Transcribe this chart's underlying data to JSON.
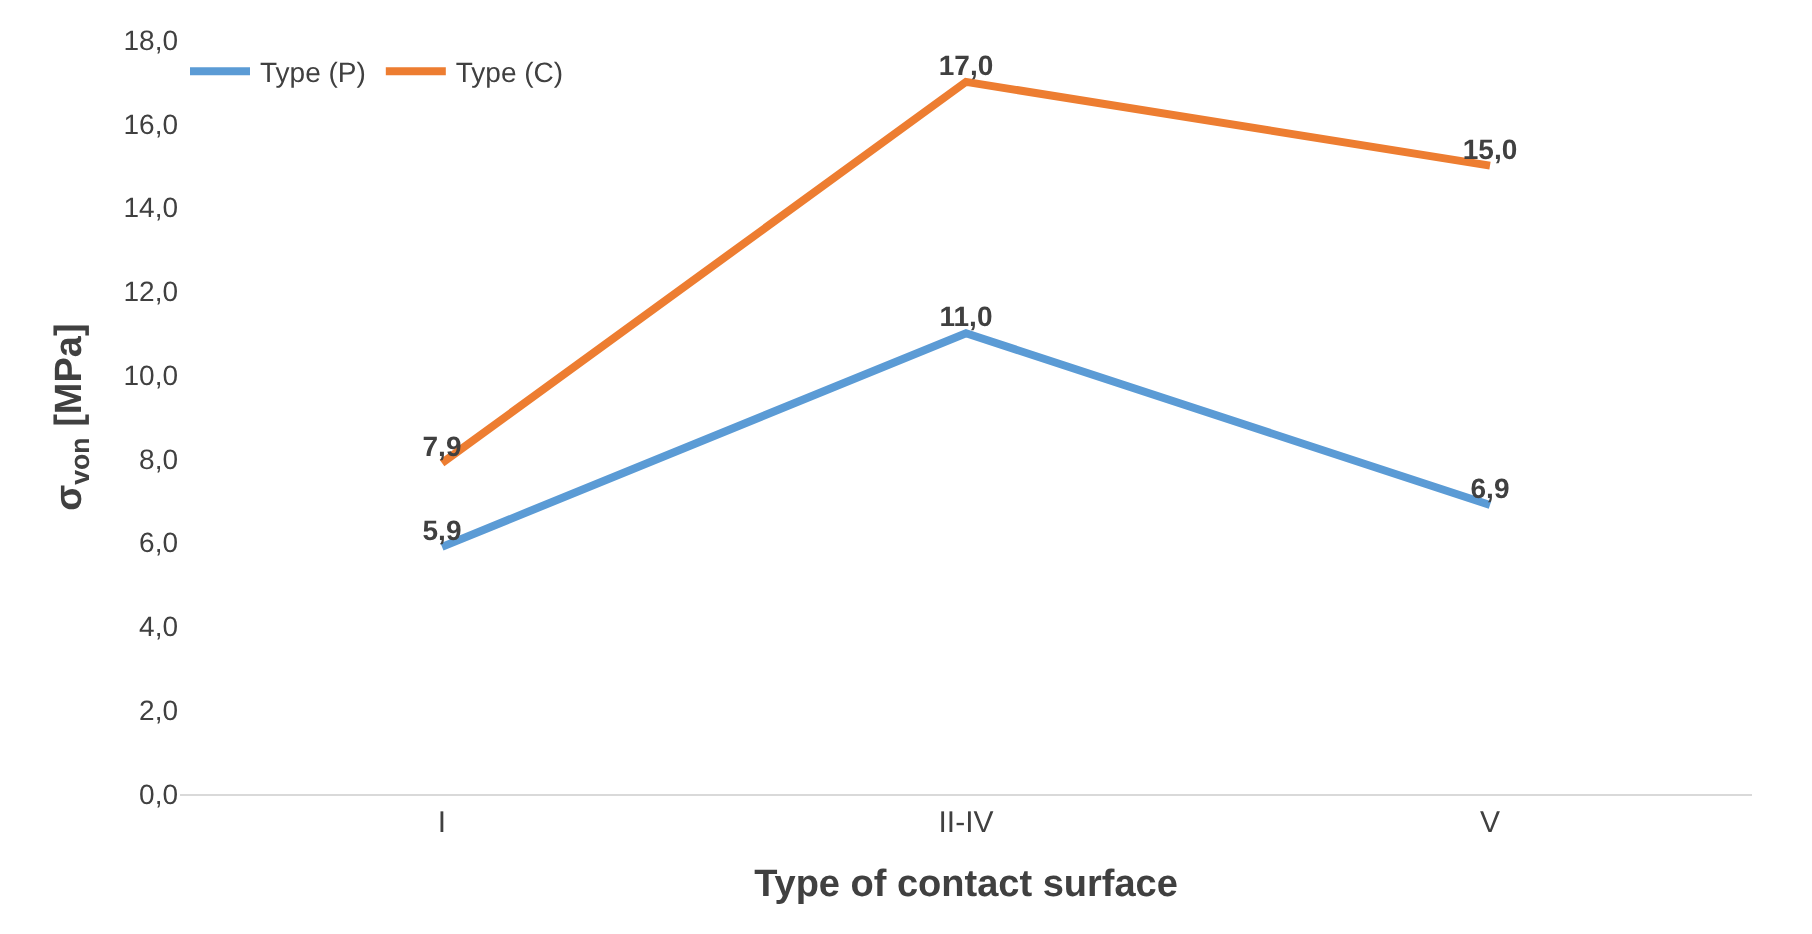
{
  "chart_data": {
    "type": "line",
    "xlabel": "Type of contact surface",
    "ylabel": "σ$_{von}$ [MPa]",
    "categories": [
      "I",
      "II-IV",
      "V"
    ],
    "series": [
      {
        "name": "Type (P)",
        "color": "#5b9bd5",
        "values": [
          5.9,
          11.0,
          6.9
        ],
        "value_labels": [
          "5,9",
          "11,0",
          "6,9"
        ]
      },
      {
        "name": "Type (C)",
        "color": "#ed7d31",
        "values": [
          7.9,
          17.0,
          15.0
        ],
        "value_labels": [
          "7,9",
          "17,0",
          "15,0"
        ]
      }
    ],
    "ylim": [
      0,
      18
    ],
    "yticks": [
      {
        "value": 0,
        "label": "0,0"
      },
      {
        "value": 2,
        "label": "2,0"
      },
      {
        "value": 4,
        "label": "4,0"
      },
      {
        "value": 6,
        "label": "6,0"
      },
      {
        "value": 8,
        "label": "8,0"
      },
      {
        "value": 10,
        "label": "10,0"
      },
      {
        "value": 12,
        "label": "12,0"
      },
      {
        "value": 14,
        "label": "14,0"
      },
      {
        "value": 16,
        "label": "16,0"
      },
      {
        "value": 18,
        "label": "18,0"
      }
    ],
    "legend": "top left",
    "marker": "none",
    "line_style": "solid"
  }
}
